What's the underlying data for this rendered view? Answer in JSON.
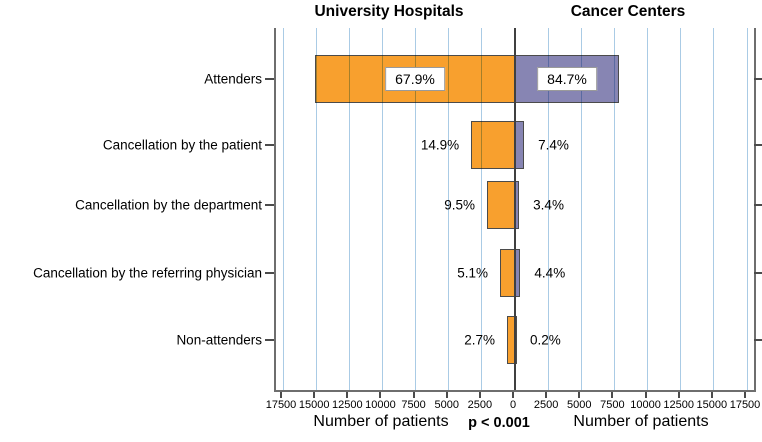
{
  "chart_data": {
    "type": "bar",
    "orientation": "diverging-horizontal",
    "title_left": "University Hospitals",
    "title_right": "Cancer Centers",
    "categories": [
      "Attenders",
      "Cancellation by the patient",
      "Cancellation by the department",
      "Cancellation by the referring physician",
      "Non-attenders"
    ],
    "series": [
      {
        "name": "University Hospitals",
        "side": "left",
        "color": "#F8A02E",
        "percent_labels": [
          "67.9%",
          "14.9%",
          "9.5%",
          "5.1%",
          "2.7%"
        ],
        "percents": [
          67.9,
          14.9,
          9.5,
          5.1,
          2.7
        ],
        "patients_est": [
          15090,
          3310,
          2110,
          1130,
          600
        ]
      },
      {
        "name": "Cancer Centers",
        "side": "right",
        "color": "#8785B3",
        "percent_labels": [
          "84.7%",
          "7.4%",
          "3.4%",
          "4.4%",
          "0.2%"
        ],
        "percents": [
          84.7,
          7.4,
          3.4,
          4.4,
          0.2
        ],
        "patients_est": [
          7850,
          690,
          315,
          410,
          20
        ]
      }
    ],
    "x_axis": {
      "label_left": "Number of patients",
      "label_right": "Number of patients",
      "tick_interval": 2500,
      "max": 17500,
      "ticks": [
        "17500",
        "15000",
        "12500",
        "10000",
        "7500",
        "5000",
        "2500",
        "0",
        "2500",
        "5000",
        "7500",
        "10000",
        "12500",
        "15000",
        "17500"
      ]
    },
    "annotation": "p < 0.001",
    "grid": {
      "show": true,
      "color": "#AACBE5"
    },
    "colors": {
      "bar_border": "#4B4B4B",
      "axis_border": "#6E6E6E",
      "zero_line": "#404040",
      "label_box_border": "#9A9A9A",
      "text": "#000000"
    },
    "legend_position": "none"
  }
}
